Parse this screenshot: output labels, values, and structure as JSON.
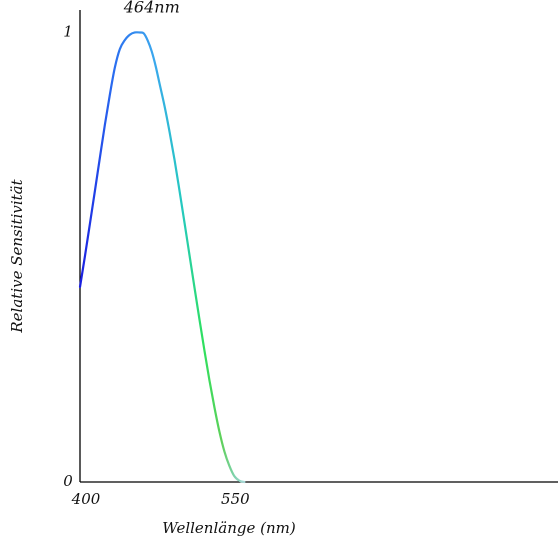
{
  "chart_data": {
    "type": "line",
    "title": "",
    "xlabel": "Wellenlänge (nm)",
    "ylabel": "Relative Sensitivität",
    "xlim": [
      400,
      880
    ],
    "ylim": [
      0,
      1.05
    ],
    "x_ticks": [
      {
        "value": 400,
        "label": "400"
      },
      {
        "value": 550,
        "label": "550"
      }
    ],
    "y_ticks": [
      {
        "value": 0,
        "label": "0"
      },
      {
        "value": 1,
        "label": "1"
      }
    ],
    "grid": false,
    "legend": "none",
    "annotations": [
      {
        "text": "464nm",
        "x": 464,
        "y": 1.0
      }
    ],
    "series": [
      {
        "x": [
          400,
          405,
          410,
          415,
          420,
          425,
          430,
          435,
          440,
          445,
          450,
          455,
          460,
          464,
          468,
          472,
          476,
          480,
          485,
          490,
          495,
          500,
          505,
          510,
          515,
          520,
          525,
          530,
          535,
          540,
          545,
          550,
          555,
          560,
          565
        ],
        "values": [
          0.434,
          0.503,
          0.575,
          0.648,
          0.722,
          0.795,
          0.862,
          0.922,
          0.963,
          0.983,
          0.995,
          1.0,
          1.0,
          0.998,
          0.982,
          0.958,
          0.925,
          0.885,
          0.835,
          0.778,
          0.716,
          0.647,
          0.576,
          0.504,
          0.432,
          0.361,
          0.292,
          0.226,
          0.166,
          0.112,
          0.068,
          0.036,
          0.013,
          0.003,
          0.0
        ]
      }
    ]
  },
  "colors": {
    "axis": "#000000",
    "curve_gradient": [
      {
        "offset": 0.0,
        "color": "#1a1ee0"
      },
      {
        "offset": 0.2,
        "color": "#2a6cf0"
      },
      {
        "offset": 0.45,
        "color": "#3ba7ee"
      },
      {
        "offset": 0.62,
        "color": "#25c9c0"
      },
      {
        "offset": 0.75,
        "color": "#2ee05e"
      },
      {
        "offset": 0.86,
        "color": "#5fd05a"
      },
      {
        "offset": 0.94,
        "color": "#7fd2ae"
      },
      {
        "offset": 1.0,
        "color": "#a8d8d8"
      }
    ]
  }
}
